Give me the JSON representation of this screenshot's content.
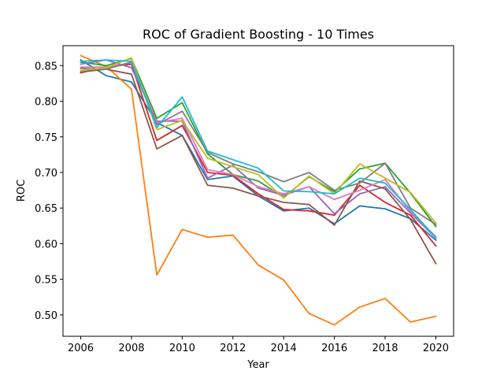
{
  "chart_data": {
    "type": "line",
    "title": "ROC of Gradient Boosting - 10 Times",
    "xlabel": "Year",
    "ylabel": "ROC",
    "xlim": [
      2005.3,
      2020.7
    ],
    "ylim": [
      0.47,
      0.878
    ],
    "x_ticks": [
      2006,
      2008,
      2010,
      2012,
      2014,
      2016,
      2018,
      2020
    ],
    "x_tick_labels": [
      "2006",
      "2008",
      "2010",
      "2012",
      "2014",
      "2016",
      "2018",
      "2020"
    ],
    "y_ticks": [
      0.5,
      0.55,
      0.6,
      0.65,
      0.7,
      0.75,
      0.8,
      0.85
    ],
    "y_tick_labels": [
      "0.50",
      "0.55",
      "0.60",
      "0.65",
      "0.70",
      "0.75",
      "0.80",
      "0.85"
    ],
    "grid": false,
    "legend": false,
    "x": [
      2006,
      2007,
      2008,
      2009,
      2010,
      2011,
      2012,
      2013,
      2014,
      2015,
      2016,
      2017,
      2018,
      2019,
      2020
    ],
    "series": [
      {
        "color": "#1f77b4",
        "values": [
          0.858,
          0.836,
          0.827,
          0.77,
          0.752,
          0.69,
          0.695,
          0.667,
          0.646,
          0.65,
          0.628,
          0.653,
          0.649,
          0.635,
          0.605
        ]
      },
      {
        "color": "#ff7f0e",
        "values": [
          0.864,
          0.849,
          0.817,
          0.556,
          0.62,
          0.609,
          0.612,
          0.57,
          0.549,
          0.502,
          0.486,
          0.511,
          0.523,
          0.49,
          0.498
        ]
      },
      {
        "color": "#2ca02c",
        "values": [
          0.855,
          0.85,
          0.86,
          0.776,
          0.798,
          0.726,
          0.697,
          0.688,
          0.665,
          0.694,
          0.673,
          0.705,
          0.713,
          0.671,
          0.624
        ]
      },
      {
        "color": "#d62728",
        "values": [
          0.84,
          0.848,
          0.852,
          0.745,
          0.766,
          0.7,
          0.696,
          0.67,
          0.648,
          0.646,
          0.64,
          0.682,
          0.658,
          0.64,
          0.597
        ]
      },
      {
        "color": "#9467bd",
        "values": [
          0.852,
          0.858,
          0.847,
          0.772,
          0.772,
          0.692,
          0.71,
          0.678,
          0.668,
          0.68,
          0.642,
          0.67,
          0.68,
          0.643,
          0.608
        ]
      },
      {
        "color": "#8c564b",
        "values": [
          0.841,
          0.845,
          0.838,
          0.733,
          0.752,
          0.682,
          0.678,
          0.667,
          0.658,
          0.655,
          0.626,
          0.688,
          0.677,
          0.634,
          0.572
        ]
      },
      {
        "color": "#e377c2",
        "values": [
          0.848,
          0.848,
          0.854,
          0.77,
          0.776,
          0.704,
          0.697,
          0.68,
          0.67,
          0.68,
          0.662,
          0.675,
          0.69,
          0.645,
          0.61
        ]
      },
      {
        "color": "#7f7f7f",
        "values": [
          0.846,
          0.845,
          0.855,
          0.767,
          0.786,
          0.728,
          0.712,
          0.701,
          0.687,
          0.7,
          0.675,
          0.685,
          0.713,
          0.65,
          0.627
        ]
      },
      {
        "color": "#bcbd22",
        "values": [
          0.843,
          0.847,
          0.861,
          0.76,
          0.773,
          0.72,
          0.708,
          0.697,
          0.664,
          0.695,
          0.67,
          0.712,
          0.692,
          0.672,
          0.629
        ]
      },
      {
        "color": "#17becf",
        "values": [
          0.856,
          0.858,
          0.856,
          0.763,
          0.806,
          0.73,
          0.718,
          0.706,
          0.674,
          0.673,
          0.67,
          0.692,
          0.685,
          0.648,
          0.608
        ]
      }
    ]
  }
}
